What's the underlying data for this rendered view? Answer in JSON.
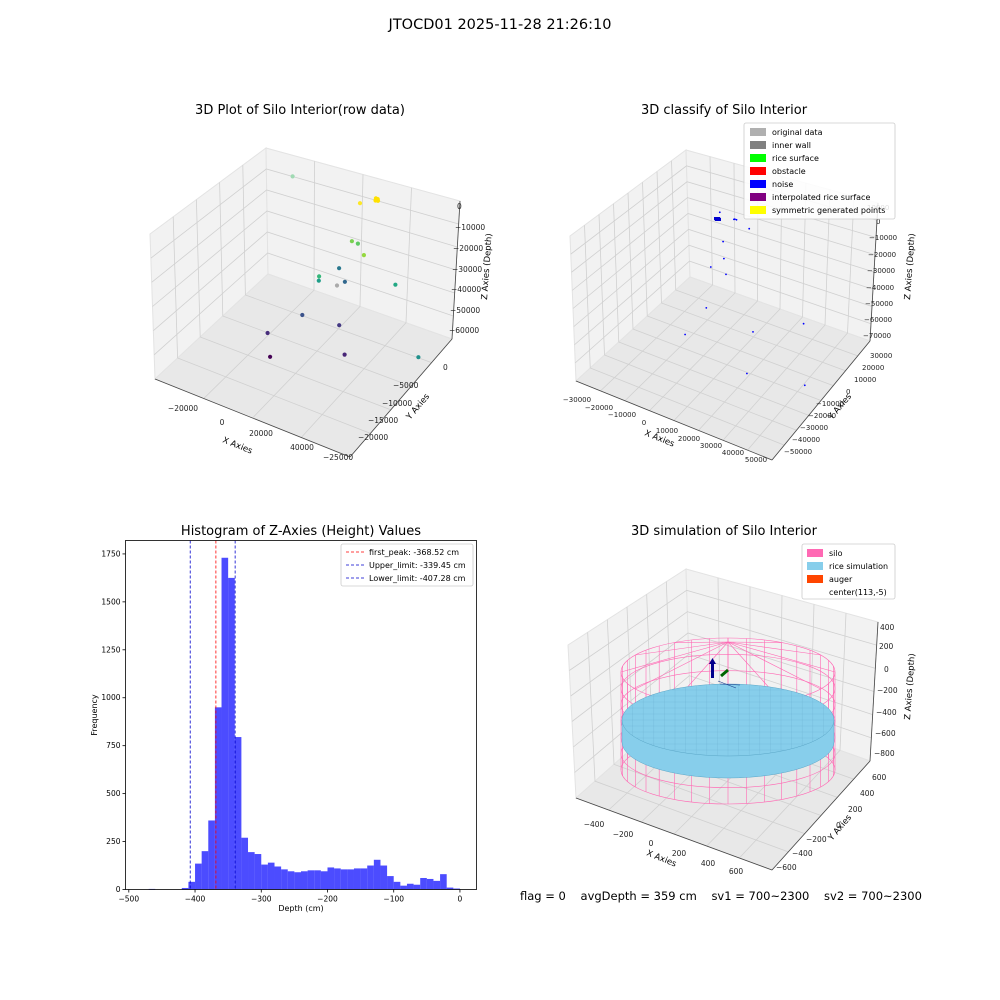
{
  "suptitle": "JTOCD01 2025-11-28 21:26:10",
  "footer": {
    "flag": "flag = 0",
    "avg_depth": "avgDepth = 359 cm",
    "sv1": "sv1 = 700~2300",
    "sv2": "sv2 = 700~2300"
  },
  "colors": {
    "histogram": "#0000ff",
    "peak_line": "#ff0000",
    "limit_line": "#0000cc",
    "silo": "#ff69b4",
    "rice": "#87ceeb",
    "auger": "#ff4500"
  },
  "chart_data": [
    {
      "type": "scatter",
      "panel": "raw",
      "title": "3D Plot of Silo Interior(row data)",
      "projection": "3d",
      "xlabel": "X Axies",
      "ylabel": "Y Axies",
      "zlabel": "Z Axies (Depth)",
      "xticks": [
        "−20000",
        "0",
        "20000",
        "40000"
      ],
      "yticks": [
        "0",
        "−5000",
        "−10000",
        "−15000",
        "−20000",
        "−25000"
      ],
      "zticks": [
        "0",
        "−10000",
        "−20000",
        "−30000",
        "−40000",
        "−50000",
        "−60000"
      ],
      "points": [
        {
          "x": 21000,
          "y": -2500,
          "z": 2500,
          "color": "#ffe100"
        },
        {
          "x": 20500,
          "y": -2300,
          "z": 2400,
          "color": "#ffe100"
        },
        {
          "x": 21500,
          "y": -2600,
          "z": 2300,
          "color": "#ffe100"
        },
        {
          "x": 21200,
          "y": -2400,
          "z": 2600,
          "color": "#ffe100"
        },
        {
          "x": 20800,
          "y": -2700,
          "z": 2200,
          "color": "#ffe100"
        },
        {
          "x": 15000,
          "y": -2000,
          "z": -3000,
          "color": "#fde725"
        },
        {
          "x": -8000,
          "y": -1000,
          "z": -5000,
          "color": "#a0dab3"
        },
        {
          "x": 14000,
          "y": -3500,
          "z": -18000,
          "color": "#7ad151"
        },
        {
          "x": 16500,
          "y": -4000,
          "z": -17000,
          "color": "#5ec962"
        },
        {
          "x": 19000,
          "y": -4500,
          "z": -20000,
          "color": "#95d840"
        },
        {
          "x": 30000,
          "y": -5200,
          "z": -26000,
          "color": "#22a884"
        },
        {
          "x": 11500,
          "y": -5000,
          "z": -29000,
          "color": "#2a788e"
        },
        {
          "x": 15000,
          "y": -6500,
          "z": -31000,
          "color": "#31688e"
        },
        {
          "x": 5000,
          "y": -5000,
          "z": -36000,
          "color": "#35b779"
        },
        {
          "x": 6000,
          "y": -6000,
          "z": -36000,
          "color": "#1f9e89"
        },
        {
          "x": 13000,
          "y": -7000,
          "z": -33000,
          "color": "#aaaaaa"
        },
        {
          "x": 40000,
          "y": -7500,
          "z": -49000,
          "color": "#21918c"
        },
        {
          "x": 5000,
          "y": -10000,
          "z": -46000,
          "color": "#3b528b"
        },
        {
          "x": 17000,
          "y": -10000,
          "z": -44000,
          "color": "#443983"
        },
        {
          "x": 22000,
          "y": -13000,
          "z": -50000,
          "color": "#482677"
        },
        {
          "x": -3000,
          "y": -13000,
          "z": -54000,
          "color": "#472d7b"
        },
        {
          "x": 0,
          "y": -15000,
          "z": -60000,
          "color": "#440154"
        }
      ]
    },
    {
      "type": "scatter",
      "panel": "classify",
      "title": "3D classify of Silo Interior",
      "projection": "3d",
      "xlabel": "X Axies",
      "ylabel": "Y Axies",
      "zlabel": "Z Axies (Depth)",
      "xticks": [
        "−30000",
        "−20000",
        "−10000",
        "0",
        "10000",
        "20000",
        "30000",
        "40000",
        "50000"
      ],
      "yticks": [
        "30000",
        "20000",
        "10000",
        "0",
        "−10000",
        "−20000",
        "−30000",
        "−40000",
        "−50000"
      ],
      "zticks": [
        "10000",
        "0",
        "−10000",
        "−20000",
        "−30000",
        "−40000",
        "−50000",
        "−60000",
        "−70000"
      ],
      "legend": [
        {
          "label": "original data",
          "color": "#b0b0b0"
        },
        {
          "label": "inner wall",
          "color": "#808080"
        },
        {
          "label": "rice surface",
          "color": "#00ff00"
        },
        {
          "label": "obstacle",
          "color": "#ff0000"
        },
        {
          "label": "noise",
          "color": "#0000ff"
        },
        {
          "label": "interpolated rice surface",
          "color": "#800080"
        },
        {
          "label": "symmetric generated points",
          "color": "#ffff00"
        }
      ],
      "legend_loc": "upper right",
      "points": [
        {
          "x": 8000,
          "y": -2000,
          "z": 0,
          "color": "#0000ff"
        },
        {
          "x": 9000,
          "y": -2500,
          "z": 500,
          "color": "#0000ff"
        },
        {
          "x": 7500,
          "y": -1800,
          "z": -500,
          "color": "#0000ff"
        },
        {
          "x": -1000,
          "y": 3000,
          "z": -4000,
          "color": "#0000ff"
        },
        {
          "x": 14000,
          "y": -2000,
          "z": -2000,
          "color": "#0000ff"
        },
        {
          "x": 2000,
          "y": 0,
          "z": -16000,
          "color": "#0000ff"
        },
        {
          "x": 4000,
          "y": -3000,
          "z": -22000,
          "color": "#0000ff"
        },
        {
          "x": 6000,
          "y": -5000,
          "z": -28000,
          "color": "#0000ff"
        },
        {
          "x": -2000,
          "y": -2000,
          "z": -30000,
          "color": "#0000ff"
        },
        {
          "x": 40000,
          "y": -8000,
          "z": -35000,
          "color": "#0000ff"
        },
        {
          "x": 0,
          "y": -9000,
          "z": -46000,
          "color": "#0000ff"
        },
        {
          "x": 20000,
          "y": -10000,
          "z": -48000,
          "color": "#0000ff"
        },
        {
          "x": 46000,
          "y": -18000,
          "z": -58000,
          "color": "#0000ff"
        },
        {
          "x": -5000,
          "y": -16000,
          "z": -58000,
          "color": "#0000ff"
        },
        {
          "x": 23000,
          "y": -20000,
          "z": -62000,
          "color": "#0000ff"
        }
      ]
    },
    {
      "type": "bar",
      "panel": "histogram",
      "title": "Histogram of Z-Axies (Height) Values",
      "xlabel": "Depth (cm)",
      "ylabel": "Frequency",
      "xlim": [
        -505,
        25
      ],
      "ylim": [
        0,
        1820
      ],
      "xticks": [
        -500,
        -400,
        -300,
        -200,
        -100,
        0
      ],
      "xticklabels": [
        "−500",
        "−400",
        "−300",
        "−200",
        "−100",
        "0"
      ],
      "yticks": [
        0,
        250,
        500,
        750,
        1000,
        1250,
        1500,
        1750
      ],
      "bin_width": 10,
      "bin_starts": [
        -500,
        -490,
        -480,
        -470,
        -460,
        -450,
        -440,
        -430,
        -420,
        -410,
        -400,
        -390,
        -380,
        -370,
        -360,
        -350,
        -340,
        -330,
        -320,
        -310,
        -300,
        -290,
        -280,
        -270,
        -260,
        -250,
        -240,
        -230,
        -220,
        -210,
        -200,
        -190,
        -180,
        -170,
        -160,
        -150,
        -140,
        -130,
        -120,
        -110,
        -100,
        -90,
        -80,
        -70,
        -60,
        -50,
        -40,
        -30,
        -20,
        -10
      ],
      "values": [
        0,
        0,
        0,
        3,
        0,
        0,
        0,
        0,
        8,
        40,
        135,
        200,
        360,
        950,
        1730,
        1625,
        795,
        270,
        195,
        185,
        130,
        140,
        120,
        105,
        95,
        90,
        95,
        100,
        100,
        95,
        115,
        110,
        105,
        105,
        110,
        110,
        125,
        155,
        125,
        70,
        40,
        20,
        30,
        25,
        60,
        55,
        45,
        80,
        10,
        5
      ],
      "lines": [
        {
          "label": "first_peak: -368.52 cm",
          "x": -368.52,
          "color": "#ff0000"
        },
        {
          "label": "Upper_limit: -339.45 cm",
          "x": -339.45,
          "color": "#0000cc"
        },
        {
          "label": "Lower_limit: -407.28 cm",
          "x": -407.28,
          "color": "#0000cc"
        }
      ],
      "legend_loc": "upper right"
    },
    {
      "type": "surface",
      "panel": "simulation",
      "title": "3D simulation of Silo Interior",
      "projection": "3d",
      "xlabel": "X Axies",
      "ylabel": "Y Axies",
      "zlabel": "Z Axies (Depth)",
      "xticks": [
        "−400",
        "−200",
        "0",
        "200",
        "400",
        "600"
      ],
      "yticks": [
        "600",
        "400",
        "200",
        "0",
        "−200",
        "−400",
        "−600"
      ],
      "zticks": [
        "400",
        "200",
        "0",
        "−200",
        "−400",
        "−600",
        "−800"
      ],
      "legend": [
        {
          "label": "silo",
          "color": "#ff69b4"
        },
        {
          "label": "rice simulation",
          "color": "#87ceeb"
        },
        {
          "label": "auger",
          "color": "#ff4500"
        },
        {
          "label": "center(113,-5)",
          "color": ""
        }
      ],
      "legend_loc": "upper right"
    }
  ]
}
